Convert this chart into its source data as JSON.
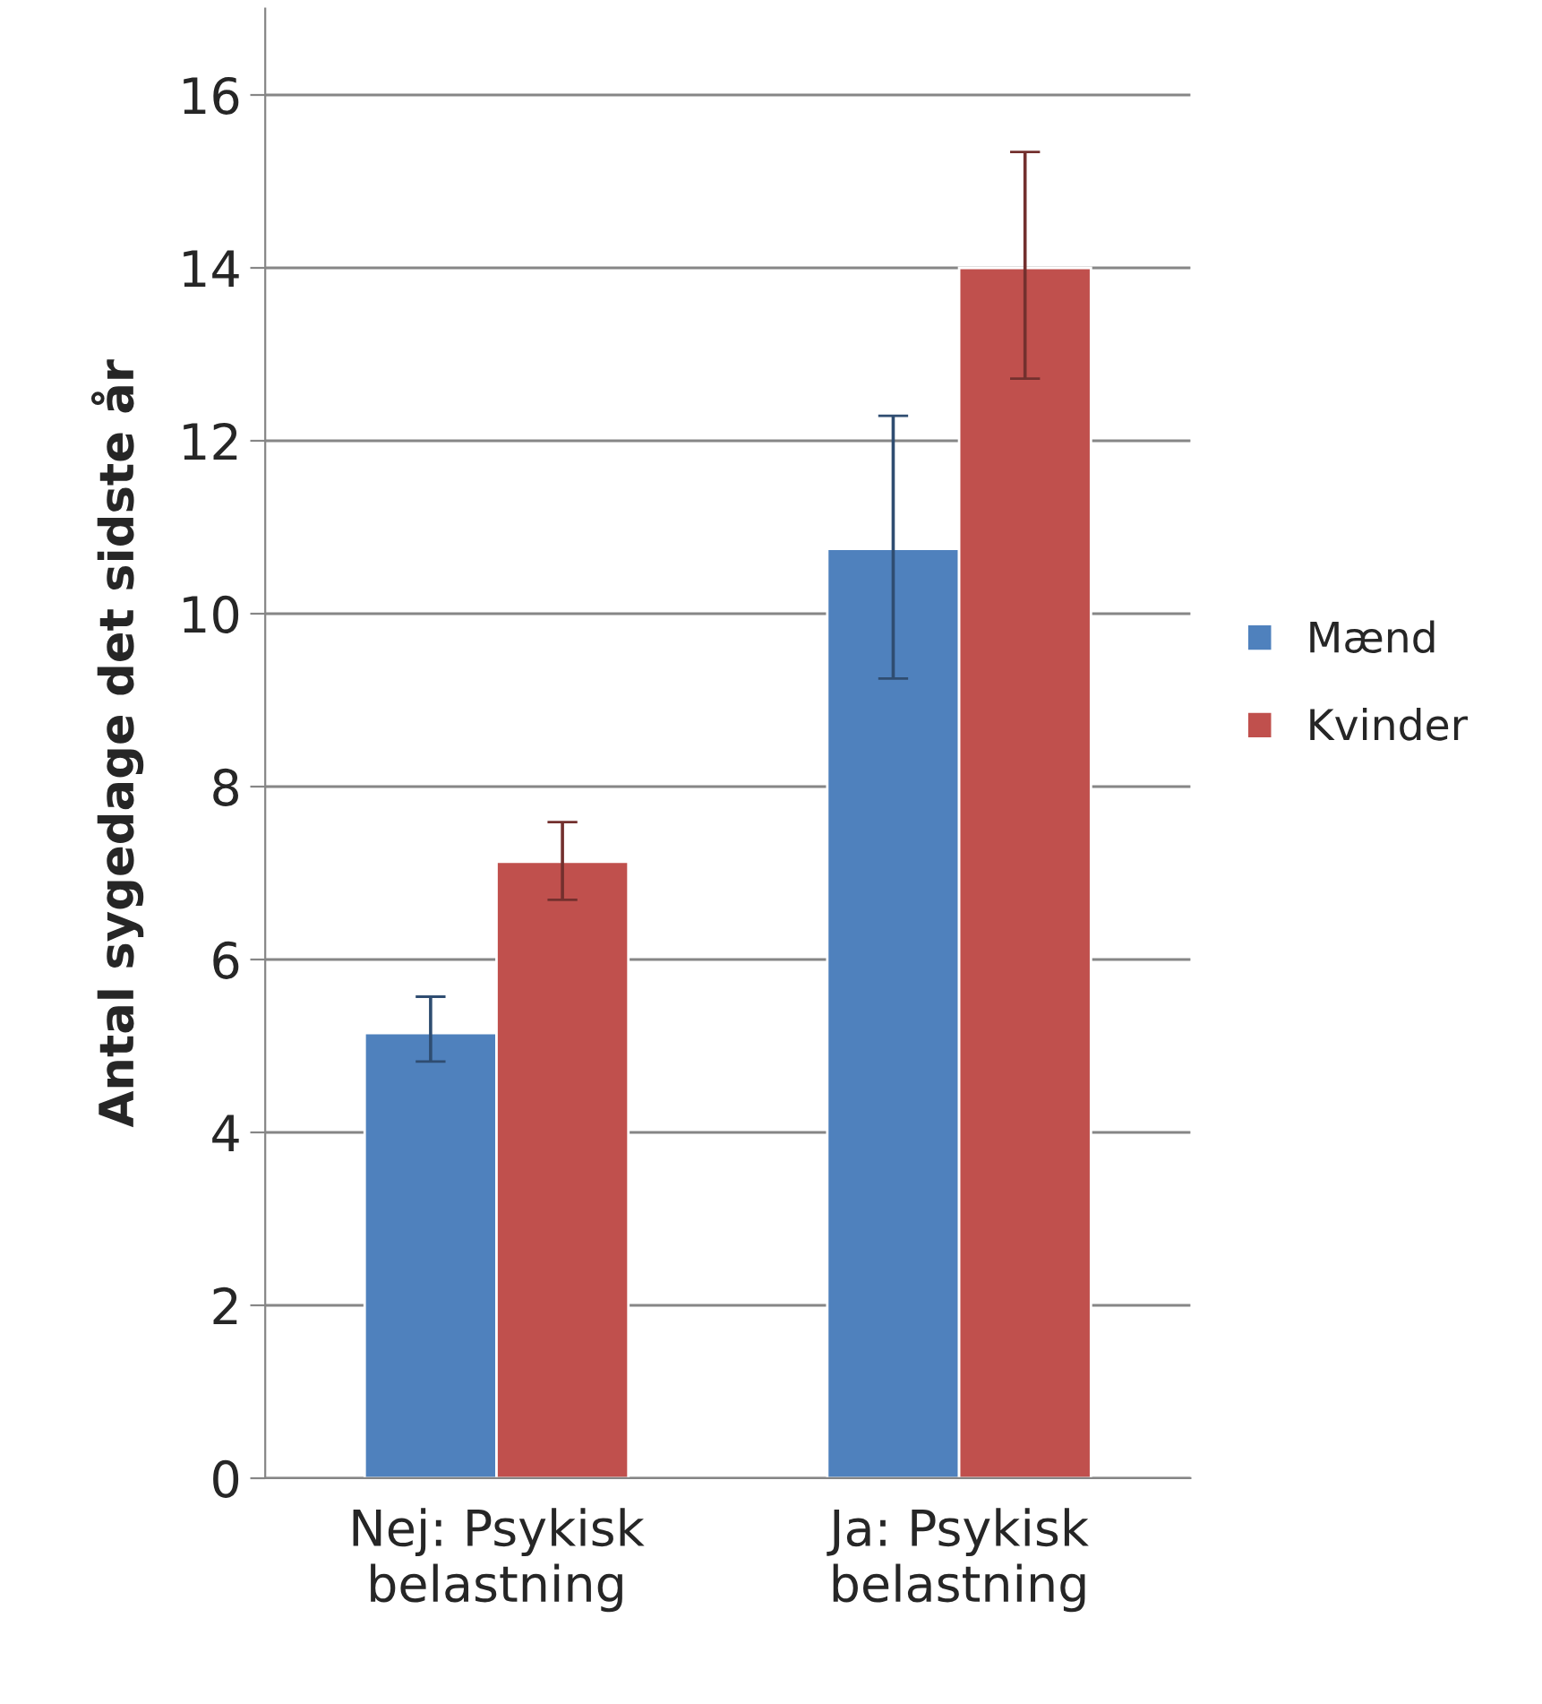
{
  "chart_data": {
    "type": "bar",
    "ylabel": "Antal sygedage det sidste år",
    "categories": [
      "Nej: Psykisk\nbelastning",
      "Ja: Psykisk\nbelastning"
    ],
    "series": [
      {
        "name": "Mænd",
        "color": "#4f81bd",
        "values": [
          5.15,
          10.75
        ],
        "errors": [
          [
            4.82,
            5.57
          ],
          [
            9.25,
            12.29
          ]
        ]
      },
      {
        "name": "Kvinder",
        "color": "#c0504d",
        "values": [
          7.13,
          14.0
        ],
        "errors": [
          [
            6.69,
            7.59
          ],
          [
            12.72,
            15.34
          ]
        ]
      }
    ],
    "ylim": [
      0,
      17
    ],
    "yticks": [
      0,
      2,
      4,
      6,
      8,
      10,
      12,
      14,
      16
    ],
    "grid": "y",
    "legend": "right"
  }
}
